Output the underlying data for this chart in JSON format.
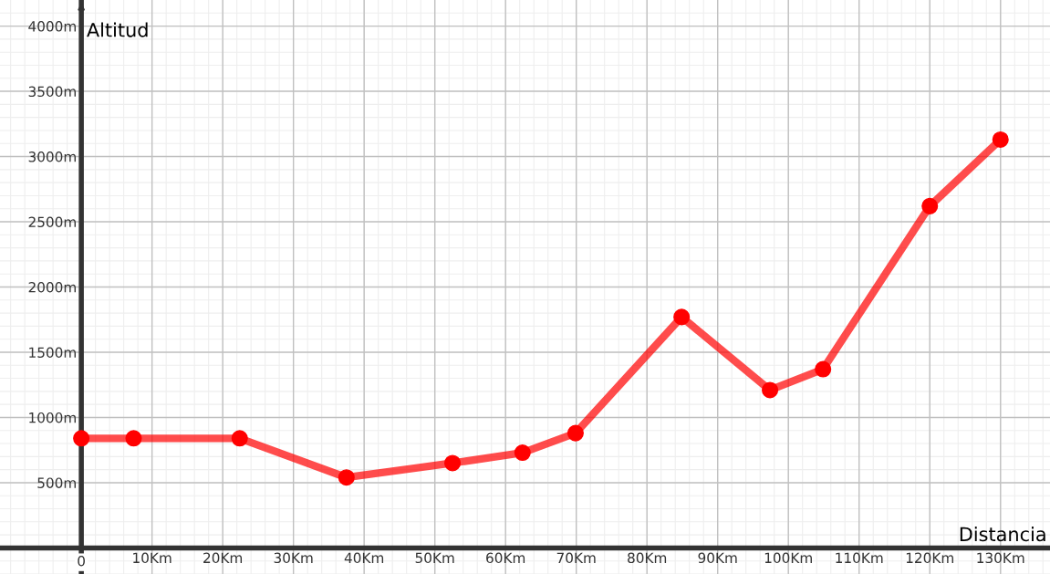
{
  "chart_data": {
    "type": "line",
    "xlabel": "Distancia",
    "ylabel": "Altitud",
    "series": [
      {
        "color": "#ff0000",
        "x": [
          0,
          7.4,
          22.4,
          37.5,
          52.5,
          62.4,
          69.9,
          84.9,
          97.4,
          104.9,
          120,
          130
        ],
        "values": [
          840,
          840,
          840,
          540,
          650,
          730,
          880,
          1770,
          1210,
          1370,
          2620,
          3130
        ]
      }
    ],
    "xlim": [
      -11.5,
      137
    ],
    "ylim": [
      -200,
      4200
    ],
    "xticks": [
      {
        "value": 0,
        "label": "0"
      },
      {
        "value": 10,
        "label": "10Km"
      },
      {
        "value": 20,
        "label": "20Km"
      },
      {
        "value": 30,
        "label": "30Km"
      },
      {
        "value": 40,
        "label": "40Km"
      },
      {
        "value": 50,
        "label": "50Km"
      },
      {
        "value": 60,
        "label": "60Km"
      },
      {
        "value": 70,
        "label": "70Km"
      },
      {
        "value": 80,
        "label": "80Km"
      },
      {
        "value": 90,
        "label": "90Km"
      },
      {
        "value": 100,
        "label": "100Km"
      },
      {
        "value": 110,
        "label": "110Km"
      },
      {
        "value": 120,
        "label": "120Km"
      },
      {
        "value": 130,
        "label": "130Km"
      }
    ],
    "yticks": [
      {
        "value": 500,
        "label": "500m"
      },
      {
        "value": 1000,
        "label": "1000m"
      },
      {
        "value": 1500,
        "label": "1500m"
      },
      {
        "value": 2000,
        "label": "2000m"
      },
      {
        "value": 2500,
        "label": "2500m"
      },
      {
        "value": 3000,
        "label": "3000m"
      },
      {
        "value": 3500,
        "label": "3500m"
      },
      {
        "value": 4000,
        "label": "4000m"
      }
    ],
    "grid": true,
    "marker": "circle",
    "line_style": "solid"
  }
}
